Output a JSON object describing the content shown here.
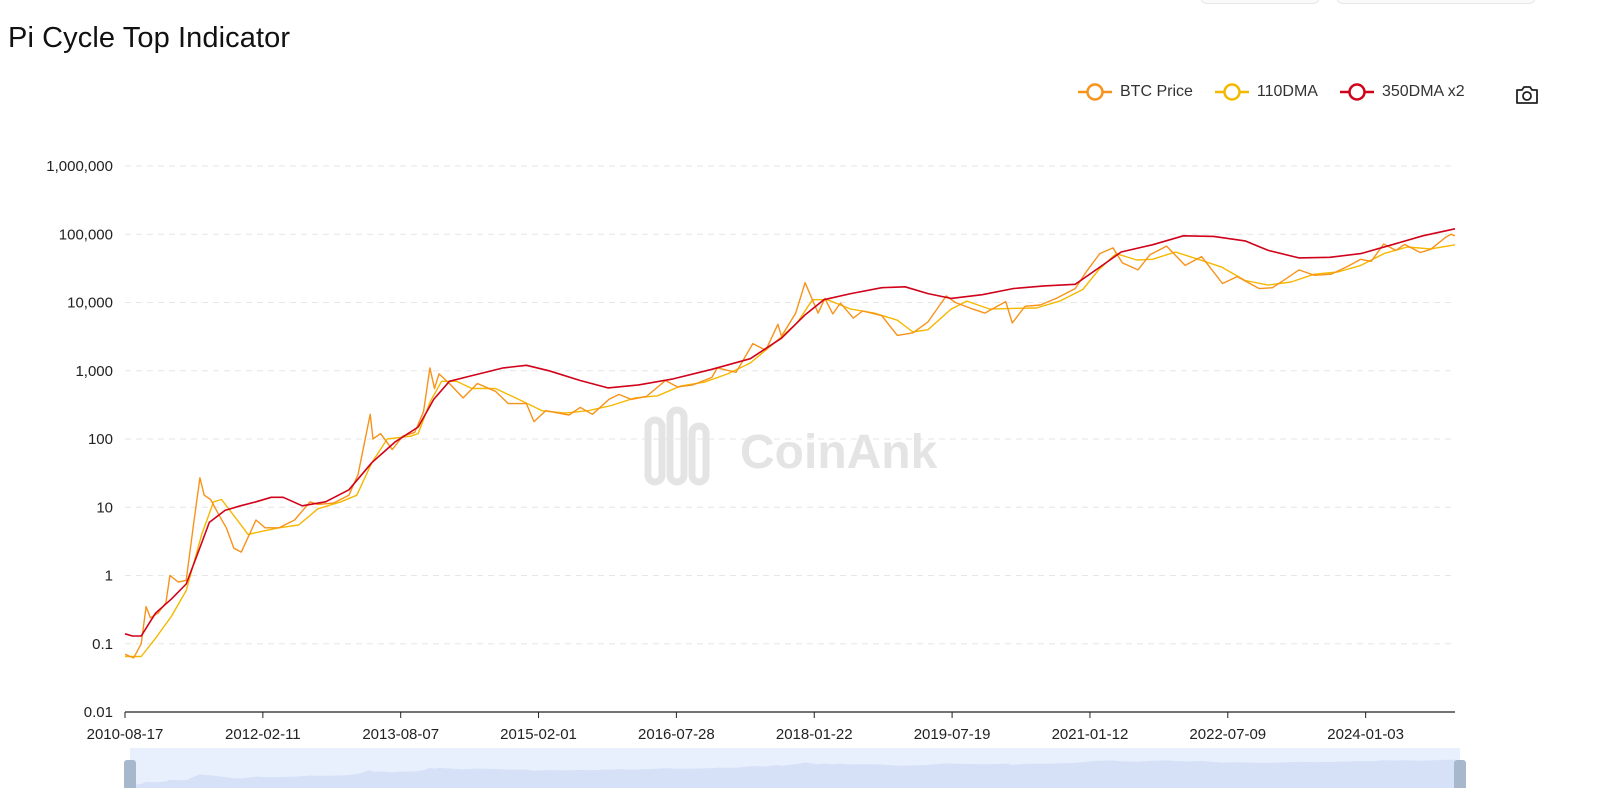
{
  "title": "Pi Cycle Top Indicator",
  "watermark": "CoinAnk",
  "legend": [
    {
      "label": "BTC Price",
      "color": "#f7931a"
    },
    {
      "label": "110DMA",
      "color": "#f5b800"
    },
    {
      "label": "350DMA x2",
      "color": "#d0021b"
    }
  ],
  "toolbox": {
    "icon": "camera-icon"
  },
  "chart_data": {
    "type": "line",
    "y_scale": "log",
    "ylim": [
      0.01,
      1000000
    ],
    "xlim": [
      "2010-08-17",
      "2024-12-20"
    ],
    "y_ticks": [
      {
        "value": 0.01,
        "label": "0.01"
      },
      {
        "value": 0.1,
        "label": "0.1"
      },
      {
        "value": 1,
        "label": "1"
      },
      {
        "value": 10,
        "label": "10"
      },
      {
        "value": 100,
        "label": "100"
      },
      {
        "value": 1000,
        "label": "1,000"
      },
      {
        "value": 10000,
        "label": "10,000"
      },
      {
        "value": 100000,
        "label": "100,000"
      },
      {
        "value": 1000000,
        "label": "1,000,000"
      }
    ],
    "x_ticks": [
      "2010-08-17",
      "2012-02-11",
      "2013-08-07",
      "2015-02-01",
      "2016-07-28",
      "2018-01-22",
      "2019-07-19",
      "2021-01-12",
      "2022-07-09",
      "2024-01-03"
    ],
    "grid": true,
    "legend_position": "top-right",
    "series": [
      {
        "name": "BTC Price",
        "color": "#f7931a",
        "points": [
          [
            "2010-08-17",
            0.07
          ],
          [
            "2010-09-20",
            0.062
          ],
          [
            "2010-10-20",
            0.1
          ],
          [
            "2010-11-08",
            0.35
          ],
          [
            "2010-11-25",
            0.24
          ],
          [
            "2010-12-25",
            0.28
          ],
          [
            "2011-01-25",
            0.4
          ],
          [
            "2011-02-10",
            1.0
          ],
          [
            "2011-03-15",
            0.8
          ],
          [
            "2011-04-15",
            0.85
          ],
          [
            "2011-05-15",
            6.0
          ],
          [
            "2011-06-08",
            27.0
          ],
          [
            "2011-06-25",
            15.0
          ],
          [
            "2011-07-20",
            13.0
          ],
          [
            "2011-08-20",
            8.0
          ],
          [
            "2011-09-20",
            5.0
          ],
          [
            "2011-10-20",
            2.5
          ],
          [
            "2011-11-18",
            2.2
          ],
          [
            "2011-12-20",
            4.0
          ],
          [
            "2012-01-15",
            6.5
          ],
          [
            "2012-02-20",
            5.0
          ],
          [
            "2012-04-15",
            5.0
          ],
          [
            "2012-06-15",
            6.5
          ],
          [
            "2012-08-15",
            12.0
          ],
          [
            "2012-09-15",
            11.0
          ],
          [
            "2012-11-15",
            11.5
          ],
          [
            "2013-01-15",
            15.0
          ],
          [
            "2013-02-20",
            30.0
          ],
          [
            "2013-04-09",
            230.0
          ],
          [
            "2013-04-20",
            100.0
          ],
          [
            "2013-05-20",
            120.0
          ],
          [
            "2013-07-05",
            70.0
          ],
          [
            "2013-08-15",
            110.0
          ],
          [
            "2013-10-01",
            125.0
          ],
          [
            "2013-11-05",
            250.0
          ],
          [
            "2013-11-30",
            1100.0
          ],
          [
            "2013-12-18",
            550.0
          ],
          [
            "2014-01-05",
            900.0
          ],
          [
            "2014-02-15",
            650.0
          ],
          [
            "2014-04-10",
            400.0
          ],
          [
            "2014-06-05",
            650.0
          ],
          [
            "2014-08-15",
            500.0
          ],
          [
            "2014-10-05",
            330.0
          ],
          [
            "2014-12-15",
            330.0
          ],
          [
            "2015-01-14",
            180.0
          ],
          [
            "2015-03-01",
            260.0
          ],
          [
            "2015-06-01",
            225.0
          ],
          [
            "2015-07-15",
            290.0
          ],
          [
            "2015-09-01",
            230.0
          ],
          [
            "2015-11-05",
            380.0
          ],
          [
            "2015-12-15",
            450.0
          ],
          [
            "2016-02-01",
            380.0
          ],
          [
            "2016-04-01",
            420.0
          ],
          [
            "2016-06-15",
            720.0
          ],
          [
            "2016-08-01",
            580.0
          ],
          [
            "2016-10-01",
            620.0
          ],
          [
            "2016-12-15",
            800.0
          ],
          [
            "2017-01-05",
            1100.0
          ],
          [
            "2017-03-20",
            950.0
          ],
          [
            "2017-05-25",
            2500.0
          ],
          [
            "2017-07-15",
            2000.0
          ],
          [
            "2017-09-01",
            4800.0
          ],
          [
            "2017-09-15",
            3200.0
          ],
          [
            "2017-11-10",
            7000.0
          ],
          [
            "2017-12-17",
            19500.0
          ],
          [
            "2018-02-06",
            7000.0
          ],
          [
            "2018-03-05",
            11500.0
          ],
          [
            "2018-04-05",
            6800.0
          ],
          [
            "2018-05-05",
            9800.0
          ],
          [
            "2018-06-25",
            5900.0
          ],
          [
            "2018-08-01",
            7500.0
          ],
          [
            "2018-10-15",
            6400.0
          ],
          [
            "2018-12-15",
            3300.0
          ],
          [
            "2019-02-15",
            3600.0
          ],
          [
            "2019-04-15",
            5200.0
          ],
          [
            "2019-06-26",
            12500.0
          ],
          [
            "2019-08-01",
            10000.0
          ],
          [
            "2019-10-01",
            8200.0
          ],
          [
            "2019-11-25",
            7000.0
          ],
          [
            "2020-02-15",
            10300.0
          ],
          [
            "2020-03-12",
            5000.0
          ],
          [
            "2020-05-01",
            8800.0
          ],
          [
            "2020-07-01",
            9200.0
          ],
          [
            "2020-09-01",
            11500.0
          ],
          [
            "2020-11-15",
            16000.0
          ],
          [
            "2020-12-31",
            29000.0
          ],
          [
            "2021-02-20",
            52000.0
          ],
          [
            "2021-04-13",
            63000.0
          ],
          [
            "2021-05-20",
            38000.0
          ],
          [
            "2021-07-20",
            30000.0
          ],
          [
            "2021-09-05",
            50000.0
          ],
          [
            "2021-11-10",
            67000.0
          ],
          [
            "2022-01-22",
            35000.0
          ],
          [
            "2022-03-28",
            47000.0
          ],
          [
            "2022-06-18",
            19000.0
          ],
          [
            "2022-08-15",
            24000.0
          ],
          [
            "2022-11-10",
            16000.0
          ],
          [
            "2023-01-01",
            16500.0
          ],
          [
            "2023-03-01",
            23000.0
          ],
          [
            "2023-04-15",
            30000.0
          ],
          [
            "2023-06-15",
            25000.0
          ],
          [
            "2023-08-20",
            26000.0
          ],
          [
            "2023-10-25",
            34000.0
          ],
          [
            "2023-12-15",
            43000.0
          ],
          [
            "2024-01-25",
            40000.0
          ],
          [
            "2024-03-14",
            72000.0
          ],
          [
            "2024-05-01",
            58000.0
          ],
          [
            "2024-06-05",
            71000.0
          ],
          [
            "2024-08-05",
            54000.0
          ],
          [
            "2024-09-15",
            60000.0
          ],
          [
            "2024-11-12",
            90000.0
          ],
          [
            "2024-12-05",
            100000.0
          ],
          [
            "2024-12-20",
            95000.0
          ]
        ]
      },
      {
        "name": "110DMA",
        "color": "#f5b800",
        "points": [
          [
            "2010-08-17",
            0.065
          ],
          [
            "2010-10-20",
            0.065
          ],
          [
            "2010-12-15",
            0.12
          ],
          [
            "2011-02-15",
            0.25
          ],
          [
            "2011-04-15",
            0.6
          ],
          [
            "2011-06-15",
            4.0
          ],
          [
            "2011-08-01",
            12.0
          ],
          [
            "2011-09-01",
            13.0
          ],
          [
            "2011-10-15",
            8.0
          ],
          [
            "2011-12-15",
            4.0
          ],
          [
            "2012-02-15",
            4.5
          ],
          [
            "2012-04-15",
            5.0
          ],
          [
            "2012-07-01",
            5.5
          ],
          [
            "2012-09-15",
            9.5
          ],
          [
            "2012-12-15",
            12.0
          ],
          [
            "2013-02-15",
            15.0
          ],
          [
            "2013-04-15",
            45.0
          ],
          [
            "2013-06-15",
            100.0
          ],
          [
            "2013-09-15",
            110.0
          ],
          [
            "2013-10-15",
            120.0
          ],
          [
            "2013-12-01",
            350.0
          ],
          [
            "2014-01-15",
            700.0
          ],
          [
            "2014-03-15",
            700.0
          ],
          [
            "2014-05-15",
            550.0
          ],
          [
            "2014-08-15",
            550.0
          ],
          [
            "2014-11-15",
            380.0
          ],
          [
            "2015-02-15",
            260.0
          ],
          [
            "2015-05-15",
            240.0
          ],
          [
            "2015-08-15",
            260.0
          ],
          [
            "2015-11-15",
            310.0
          ],
          [
            "2016-02-15",
            400.0
          ],
          [
            "2016-05-15",
            430.0
          ],
          [
            "2016-08-15",
            600.0
          ],
          [
            "2016-11-15",
            680.0
          ],
          [
            "2017-02-15",
            900.0
          ],
          [
            "2017-05-15",
            1300.0
          ],
          [
            "2017-08-15",
            2500.0
          ],
          [
            "2017-11-15",
            5000.0
          ],
          [
            "2018-01-15",
            11000.0
          ],
          [
            "2018-03-15",
            11000.0
          ],
          [
            "2018-06-15",
            8000.0
          ],
          [
            "2018-09-15",
            7000.0
          ],
          [
            "2018-12-15",
            5500.0
          ],
          [
            "2019-02-15",
            3700.0
          ],
          [
            "2019-04-15",
            4000.0
          ],
          [
            "2019-07-15",
            8000.0
          ],
          [
            "2019-09-15",
            10500.0
          ],
          [
            "2019-12-15",
            8000.0
          ],
          [
            "2020-03-15",
            8200.0
          ],
          [
            "2020-06-15",
            8300.0
          ],
          [
            "2020-09-15",
            10500.0
          ],
          [
            "2020-12-15",
            15500.0
          ],
          [
            "2021-02-15",
            30000.0
          ],
          [
            "2021-04-25",
            52000.0
          ],
          [
            "2021-07-15",
            42000.0
          ],
          [
            "2021-09-15",
            43000.0
          ],
          [
            "2021-12-15",
            55000.0
          ],
          [
            "2022-03-15",
            43000.0
          ],
          [
            "2022-06-15",
            33000.0
          ],
          [
            "2022-09-15",
            21000.0
          ],
          [
            "2022-12-15",
            18000.0
          ],
          [
            "2023-03-15",
            20000.0
          ],
          [
            "2023-06-15",
            26000.0
          ],
          [
            "2023-09-15",
            28000.0
          ],
          [
            "2023-12-15",
            35000.0
          ],
          [
            "2024-03-15",
            52000.0
          ],
          [
            "2024-06-15",
            65000.0
          ],
          [
            "2024-09-15",
            61000.0
          ],
          [
            "2024-12-20",
            70000.0
          ]
        ]
      },
      {
        "name": "350DMA x2",
        "color": "#d0021b",
        "points": [
          [
            "2010-08-17",
            0.14
          ],
          [
            "2010-09-15",
            0.13
          ],
          [
            "2010-10-20",
            0.13
          ],
          [
            "2010-12-15",
            0.28
          ],
          [
            "2011-02-15",
            0.45
          ],
          [
            "2011-04-15",
            0.75
          ],
          [
            "2011-06-15",
            3.0
          ],
          [
            "2011-07-15",
            6.0
          ],
          [
            "2011-09-15",
            9.0
          ],
          [
            "2011-11-15",
            10.5
          ],
          [
            "2012-01-15",
            12.0
          ],
          [
            "2012-03-15",
            14.0
          ],
          [
            "2012-05-01",
            14.0
          ],
          [
            "2012-07-15",
            10.5
          ],
          [
            "2012-10-15",
            12.0
          ],
          [
            "2013-01-15",
            18.0
          ],
          [
            "2013-04-15",
            45.0
          ],
          [
            "2013-07-15",
            90.0
          ],
          [
            "2013-10-15",
            150.0
          ],
          [
            "2013-12-15",
            380.0
          ],
          [
            "2014-02-15",
            700.0
          ],
          [
            "2014-05-15",
            850.0
          ],
          [
            "2014-09-15",
            1100.0
          ],
          [
            "2014-12-15",
            1200.0
          ],
          [
            "2015-03-15",
            1000.0
          ],
          [
            "2015-07-15",
            720.0
          ],
          [
            "2015-11-01",
            560.0
          ],
          [
            "2016-03-01",
            620.0
          ],
          [
            "2016-07-15",
            760.0
          ],
          [
            "2016-12-15",
            1050.0
          ],
          [
            "2017-05-15",
            1500.0
          ],
          [
            "2017-09-15",
            3000.0
          ],
          [
            "2017-12-15",
            6500.0
          ],
          [
            "2018-03-01",
            11000.0
          ],
          [
            "2018-06-15",
            13500.0
          ],
          [
            "2018-10-15",
            16500.0
          ],
          [
            "2019-01-15",
            17000.0
          ],
          [
            "2019-04-15",
            13500.0
          ],
          [
            "2019-07-15",
            11500.0
          ],
          [
            "2019-11-15",
            13000.0
          ],
          [
            "2020-03-15",
            16000.0
          ],
          [
            "2020-07-15",
            17500.0
          ],
          [
            "2020-11-15",
            18500.0
          ],
          [
            "2021-02-15",
            32000.0
          ],
          [
            "2021-05-15",
            55000.0
          ],
          [
            "2021-09-15",
            70000.0
          ],
          [
            "2022-01-15",
            95000.0
          ],
          [
            "2022-05-15",
            93000.0
          ],
          [
            "2022-09-15",
            80000.0
          ],
          [
            "2022-12-15",
            58000.0
          ],
          [
            "2023-04-15",
            45000.0
          ],
          [
            "2023-08-15",
            46000.0
          ],
          [
            "2023-12-15",
            52000.0
          ],
          [
            "2024-04-15",
            70000.0
          ],
          [
            "2024-08-15",
            95000.0
          ],
          [
            "2024-12-20",
            120000.0
          ]
        ]
      }
    ]
  }
}
